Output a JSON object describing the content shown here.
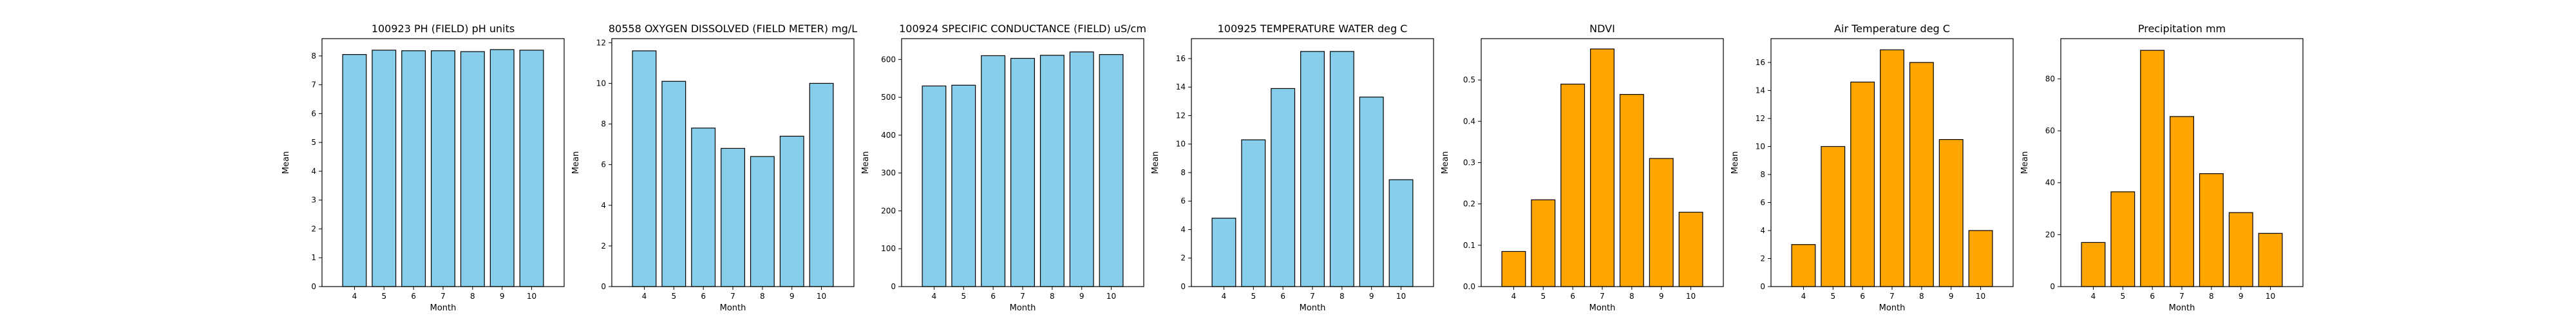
{
  "figure": {
    "panels": [
      {
        "title": "100923 PH (FIELD) pH units",
        "color": "#87ceeb",
        "ylim": [
          0,
          8.6
        ],
        "yticks": [
          0,
          1,
          2,
          3,
          4,
          5,
          6,
          7,
          8
        ]
      },
      {
        "title": "80558 OXYGEN DISSOLVED (FIELD METER) mg/L",
        "color": "#87ceeb",
        "ylim": [
          0,
          12.2
        ],
        "yticks": [
          0,
          2,
          4,
          6,
          8,
          10,
          12
        ]
      },
      {
        "title": "100924 SPECIFIC CONDUCTANCE (FIELD) uS/cm",
        "color": "#87ceeb",
        "ylim": [
          0,
          655
        ],
        "yticks": [
          0,
          100,
          200,
          300,
          400,
          500,
          600
        ]
      },
      {
        "title": "100925 TEMPERATURE WATER deg C",
        "color": "#87ceeb",
        "ylim": [
          0,
          17.4
        ],
        "yticks": [
          0,
          2,
          4,
          6,
          8,
          10,
          12,
          14,
          16
        ]
      },
      {
        "title": "NDVI",
        "color": "#ffa500",
        "ylim": [
          0,
          0.6
        ],
        "yticks": [
          0.0,
          0.1,
          0.2,
          0.3,
          0.4,
          0.5
        ]
      },
      {
        "title": "Air Temperature deg C",
        "color": "#ffa500",
        "ylim": [
          0,
          17.7
        ],
        "yticks": [
          0,
          2,
          4,
          6,
          8,
          10,
          12,
          14,
          16
        ]
      },
      {
        "title": "Precipitation mm",
        "color": "#ffa500",
        "ylim": [
          0,
          95.5
        ],
        "yticks": [
          0,
          20,
          40,
          60,
          80
        ]
      }
    ]
  },
  "chart_data": [
    {
      "type": "bar",
      "title": "100923 PH (FIELD) pH units",
      "xlabel": "Month",
      "ylabel": "Mean",
      "categories": [
        "4",
        "5",
        "6",
        "7",
        "8",
        "9",
        "10"
      ],
      "values": [
        8.05,
        8.2,
        8.18,
        8.18,
        8.15,
        8.22,
        8.2
      ],
      "ylim": [
        0,
        8.6
      ],
      "grid": false
    },
    {
      "type": "bar",
      "title": "80558 OXYGEN DISSOLVED (FIELD METER) mg/L",
      "xlabel": "Month",
      "ylabel": "Mean",
      "categories": [
        "4",
        "5",
        "6",
        "7",
        "8",
        "9",
        "10"
      ],
      "values": [
        11.6,
        10.1,
        7.8,
        6.8,
        6.4,
        7.4,
        10.0
      ],
      "ylim": [
        0,
        12.2
      ],
      "grid": false
    },
    {
      "type": "bar",
      "title": "100924 SPECIFIC CONDUCTANCE (FIELD) uS/cm",
      "xlabel": "Month",
      "ylabel": "Mean",
      "categories": [
        "4",
        "5",
        "6",
        "7",
        "8",
        "9",
        "10"
      ],
      "values": [
        530,
        532,
        610,
        603,
        611,
        620,
        613
      ],
      "ylim": [
        0,
        655
      ],
      "grid": false
    },
    {
      "type": "bar",
      "title": "100925 TEMPERATURE WATER deg C",
      "xlabel": "Month",
      "ylabel": "Mean",
      "categories": [
        "4",
        "5",
        "6",
        "7",
        "8",
        "9",
        "10"
      ],
      "values": [
        4.8,
        10.3,
        13.9,
        16.5,
        16.5,
        13.3,
        7.5
      ],
      "ylim": [
        0,
        17.4
      ],
      "grid": false
    },
    {
      "type": "bar",
      "title": "NDVI",
      "xlabel": "Month",
      "ylabel": "Mean",
      "categories": [
        "4",
        "5",
        "6",
        "7",
        "8",
        "9",
        "10"
      ],
      "values": [
        0.085,
        0.21,
        0.49,
        0.575,
        0.465,
        0.31,
        0.18
      ],
      "ylim": [
        0,
        0.6
      ],
      "grid": false
    },
    {
      "type": "bar",
      "title": "Air Temperature deg C",
      "xlabel": "Month",
      "ylabel": "Mean",
      "categories": [
        "4",
        "5",
        "6",
        "7",
        "8",
        "9",
        "10"
      ],
      "values": [
        3.0,
        10.0,
        14.6,
        16.9,
        16.0,
        10.5,
        4.0
      ],
      "ylim": [
        0,
        17.7
      ],
      "grid": false
    },
    {
      "type": "bar",
      "title": "Precipitation mm",
      "xlabel": "Month",
      "ylabel": "Mean",
      "categories": [
        "4",
        "5",
        "6",
        "7",
        "8",
        "9",
        "10"
      ],
      "values": [
        17,
        36.5,
        91,
        65.5,
        43.5,
        28.5,
        20.5
      ],
      "ylim": [
        0,
        95.5
      ],
      "grid": false
    }
  ]
}
